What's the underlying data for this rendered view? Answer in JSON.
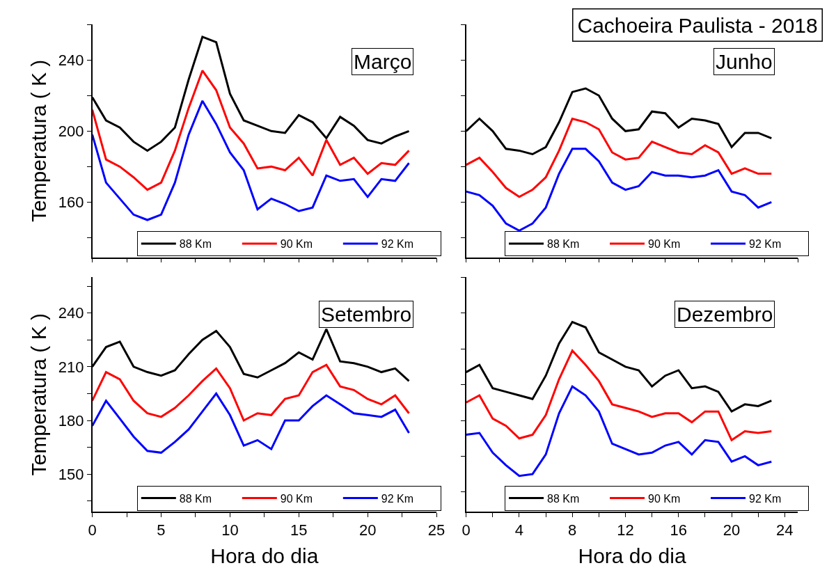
{
  "chart_data": [
    {
      "type": "line",
      "title": "Março",
      "ylabel": "Temperatura ( K )",
      "x": [
        0,
        1,
        2,
        3,
        4,
        5,
        6,
        7,
        8,
        9,
        10,
        11,
        12,
        13,
        14,
        15,
        16,
        17,
        18,
        19,
        20,
        21,
        22,
        23
      ],
      "series": [
        {
          "name": "88 Km",
          "color": "#000000",
          "values": [
            219,
            206,
            202,
            194,
            189,
            194,
            202,
            229,
            253,
            250,
            221,
            206,
            203,
            200,
            199,
            209,
            205,
            196,
            208,
            203,
            195,
            193,
            197,
            200
          ]
        },
        {
          "name": "90 Km",
          "color": "#ff0000",
          "values": [
            212,
            184,
            180,
            174,
            167,
            171,
            189,
            213,
            234,
            223,
            202,
            193,
            179,
            180,
            178,
            185,
            175,
            195,
            181,
            185,
            176,
            182,
            181,
            189
          ]
        },
        {
          "name": "92 Km",
          "color": "#0000ff",
          "values": [
            198,
            171,
            162,
            153,
            150,
            153,
            171,
            198,
            217,
            204,
            188,
            178,
            156,
            162,
            159,
            155,
            157,
            175,
            172,
            173,
            163,
            173,
            172,
            182
          ]
        }
      ],
      "xlim": [
        0,
        25
      ],
      "ylim": [
        129,
        260
      ],
      "xticks": [
        0,
        {
          "value": 2.5,
          "label": null
        },
        5,
        {
          "value": 7.5,
          "label": null
        },
        10,
        {
          "value": 12.5,
          "label": null
        },
        15,
        {
          "value": 17.5,
          "label": null
        },
        20,
        {
          "value": 22.5,
          "label": null
        },
        25
      ],
      "yticks": [
        {
          "value": 140,
          "label": null
        },
        160,
        {
          "value": 180,
          "label": null
        },
        200,
        {
          "value": 220,
          "label": null
        },
        240,
        {
          "value": 260,
          "label": null
        }
      ],
      "tick_labels": "y",
      "legend": "bottom",
      "marker": "none",
      "line_style": "solid"
    },
    {
      "type": "line",
      "title": "Junho",
      "annotations": [
        "Cachoeira Paulista - 2018"
      ],
      "x": [
        0,
        1,
        2,
        3,
        4,
        5,
        6,
        7,
        8,
        9,
        10,
        11,
        12,
        13,
        14,
        15,
        16,
        17,
        18,
        19,
        20,
        21,
        22,
        23
      ],
      "series": [
        {
          "name": "88 Km",
          "color": "#000000",
          "values": [
            200,
            207,
            200,
            190,
            189,
            187,
            191,
            205,
            222,
            224,
            220,
            207,
            200,
            201,
            211,
            210,
            202,
            207,
            206,
            204,
            191,
            199,
            199,
            196
          ]
        },
        {
          "name": "90 Km",
          "color": "#ff0000",
          "values": [
            181,
            185,
            177,
            168,
            163,
            167,
            174,
            189,
            207,
            205,
            201,
            188,
            184,
            185,
            194,
            191,
            188,
            187,
            192,
            188,
            176,
            179,
            176,
            176
          ]
        },
        {
          "name": "92 Km",
          "color": "#0000ff",
          "values": [
            166,
            164,
            158,
            148,
            144,
            148,
            157,
            176,
            190,
            190,
            183,
            171,
            167,
            169,
            177,
            175,
            175,
            174,
            175,
            178,
            166,
            164,
            157,
            160
          ]
        }
      ],
      "xlim": [
        0,
        25
      ],
      "ylim": [
        129,
        260
      ],
      "xticks": [
        0,
        {
          "value": 2.5,
          "label": null
        },
        5,
        {
          "value": 7.5,
          "label": null
        },
        10,
        {
          "value": 12.5,
          "label": null
        },
        15,
        {
          "value": 17.5,
          "label": null
        },
        20,
        {
          "value": 22.5,
          "label": null
        },
        25
      ],
      "yticks": [
        {
          "value": 140,
          "label": null
        },
        {
          "value": 160,
          "label": null
        },
        {
          "value": 180,
          "label": null
        },
        {
          "value": 200,
          "label": null
        },
        {
          "value": 220,
          "label": null
        },
        {
          "value": 240,
          "label": null
        },
        {
          "value": 260,
          "label": null
        }
      ],
      "tick_labels": false,
      "legend": "bottom",
      "marker": "none",
      "line_style": "solid"
    },
    {
      "type": "line",
      "title": "Setembro",
      "xlabel": "Hora do dia",
      "ylabel": "Temperatura ( K )",
      "x": [
        0,
        1,
        2,
        3,
        4,
        5,
        6,
        7,
        8,
        9,
        10,
        11,
        12,
        13,
        14,
        15,
        16,
        17,
        18,
        19,
        20,
        21,
        22,
        23
      ],
      "series": [
        {
          "name": "88 Km",
          "color": "#000000",
          "values": [
            210,
            221,
            224,
            210,
            207,
            205,
            208,
            217,
            225,
            230,
            221,
            206,
            204,
            208,
            212,
            218,
            214,
            231,
            213,
            212,
            210,
            207,
            209,
            202
          ]
        },
        {
          "name": "90 Km",
          "color": "#ff0000",
          "values": [
            191,
            207,
            203,
            191,
            184,
            182,
            187,
            194,
            202,
            209,
            198,
            180,
            184,
            183,
            192,
            194,
            207,
            211,
            199,
            197,
            192,
            189,
            194,
            184
          ]
        },
        {
          "name": "92 Km",
          "color": "#0000ff",
          "values": [
            177,
            191,
            181,
            171,
            163,
            162,
            168,
            175,
            185,
            195,
            183,
            166,
            169,
            164,
            180,
            180,
            188,
            194,
            189,
            184,
            183,
            182,
            186,
            173
          ]
        }
      ],
      "xlim": [
        0,
        25
      ],
      "ylim": [
        129,
        260
      ],
      "xticks": [
        0,
        {
          "value": 2.5,
          "label": null
        },
        5,
        {
          "value": 7.5,
          "label": null
        },
        10,
        {
          "value": 12.5,
          "label": null
        },
        15,
        {
          "value": 17.5,
          "label": null
        },
        20,
        {
          "value": 22.5,
          "label": null
        },
        25
      ],
      "yticks": [
        {
          "value": 135,
          "label": null
        },
        150,
        {
          "value": 165,
          "label": null
        },
        180,
        {
          "value": 195,
          "label": null
        },
        210,
        {
          "value": 225,
          "label": null
        },
        240,
        {
          "value": 255,
          "label": null
        }
      ],
      "legend": "bottom",
      "marker": "none",
      "line_style": "solid"
    },
    {
      "type": "line",
      "title": "Dezembro",
      "xlabel": "Hora do dia",
      "x": [
        0,
        1,
        2,
        3,
        4,
        5,
        6,
        7,
        8,
        9,
        10,
        11,
        12,
        13,
        14,
        15,
        16,
        17,
        18,
        19,
        20,
        21,
        22,
        23
      ],
      "series": [
        {
          "name": "88 Km",
          "color": "#000000",
          "values": [
            207,
            211,
            198,
            196,
            194,
            192,
            205,
            223,
            235,
            232,
            218,
            214,
            210,
            208,
            199,
            205,
            208,
            198,
            199,
            196,
            185,
            189,
            188,
            191
          ]
        },
        {
          "name": "90 Km",
          "color": "#ff0000",
          "values": [
            190,
            194,
            181,
            177,
            170,
            172,
            183,
            203,
            219,
            211,
            202,
            189,
            187,
            185,
            182,
            184,
            184,
            179,
            185,
            185,
            169,
            174,
            173,
            174
          ]
        },
        {
          "name": "92 Km",
          "color": "#0000ff",
          "values": [
            172,
            173,
            162,
            155,
            149,
            150,
            161,
            184,
            199,
            194,
            185,
            167,
            164,
            161,
            162,
            166,
            168,
            161,
            169,
            168,
            157,
            160,
            155,
            157
          ]
        }
      ],
      "xlim": [
        0,
        25
      ],
      "ylim": [
        129,
        260
      ],
      "xticks": [
        0,
        {
          "value": 2,
          "label": null
        },
        4,
        {
          "value": 6,
          "label": null
        },
        8,
        {
          "value": 10,
          "label": null
        },
        12,
        {
          "value": 14,
          "label": null
        },
        16,
        {
          "value": 18,
          "label": null
        },
        20,
        {
          "value": 22,
          "label": null
        },
        24
      ],
      "yticks": [
        {
          "value": 140,
          "label": null
        },
        {
          "value": 160,
          "label": null
        },
        {
          "value": 180,
          "label": null
        },
        {
          "value": 200,
          "label": null
        },
        {
          "value": 220,
          "label": null
        },
        {
          "value": 240,
          "label": null
        },
        {
          "value": 260,
          "label": null
        }
      ],
      "tick_labels": "x",
      "legend": "bottom",
      "marker": "none",
      "line_style": "solid"
    }
  ]
}
